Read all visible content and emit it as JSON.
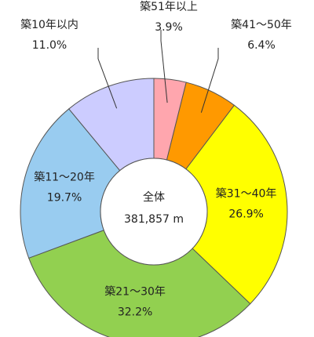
{
  "chart_data": {
    "type": "donut",
    "center_label": "全体",
    "center_value": "381,857 m",
    "categories": [
      "築51年以上",
      "築41～50年",
      "築31～40年",
      "築21～30年",
      "築11～20年",
      "築10年以内"
    ],
    "values": [
      3.9,
      6.4,
      26.9,
      32.2,
      19.7,
      11.0
    ],
    "value_labels": [
      "3.9%",
      "6.4%",
      "26.9%",
      "32.2%",
      "19.7%",
      "11.0%"
    ],
    "colors": [
      "#ffa6ae",
      "#ff9900",
      "#ffff00",
      "#92d050",
      "#99ccf0",
      "#ccccff"
    ]
  }
}
